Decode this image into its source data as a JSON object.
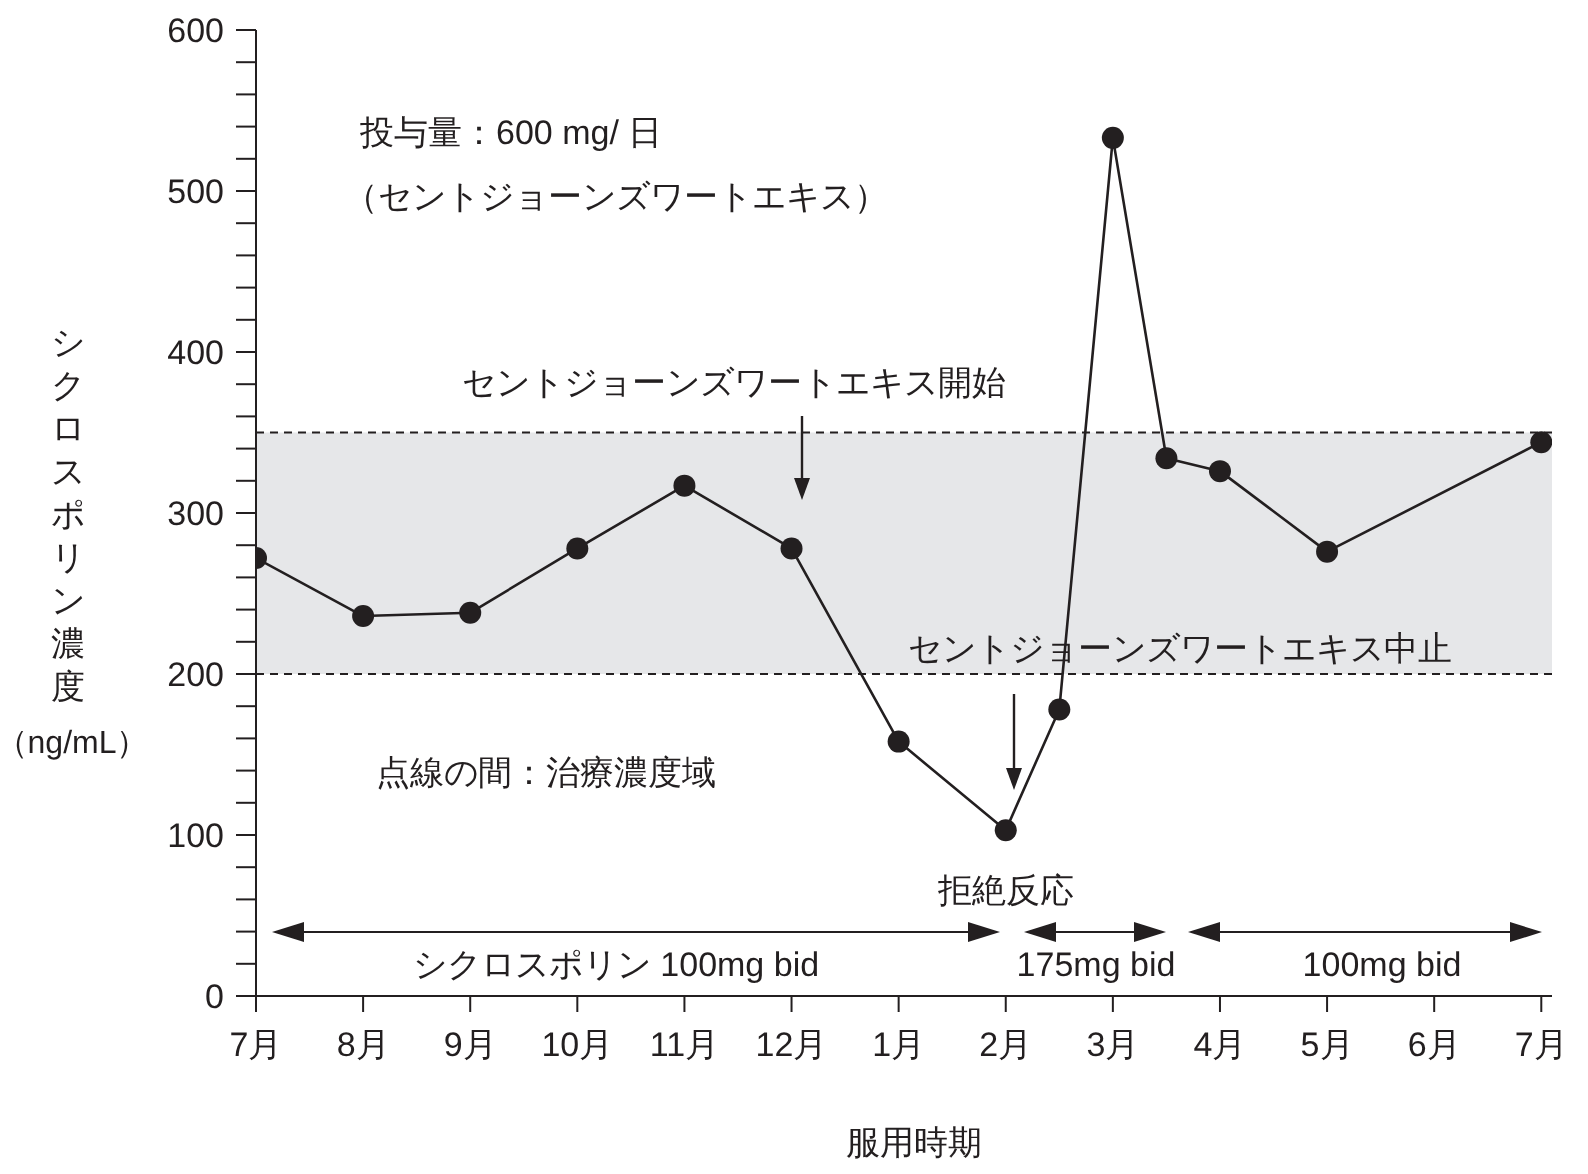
{
  "chart_data": {
    "type": "line",
    "xlabel": "服用時期",
    "ylabel": "シクロスポリン濃度（ng/mL）",
    "categories": [
      "7月",
      null,
      "8月",
      null,
      "9月",
      null,
      "10月",
      null,
      "11月",
      null,
      "12月",
      null,
      "1月",
      null,
      "2月",
      null,
      "3月",
      null,
      "4月",
      null,
      "5月",
      null,
      "6月",
      null,
      "7月"
    ],
    "series": [
      {
        "color": "#231f20",
        "values": [
          272,
          null,
          236,
          null,
          238,
          null,
          278,
          null,
          317,
          null,
          278,
          null,
          158,
          null,
          103,
          178,
          533,
          334,
          326,
          null,
          276,
          null,
          null,
          null,
          344
        ]
      }
    ],
    "ylim": [
      0,
      600
    ],
    "yticks": [
      0,
      {
        "value": 20,
        "label": null
      },
      {
        "value": 40,
        "label": null
      },
      {
        "value": 60,
        "label": null
      },
      {
        "value": 80,
        "label": null
      },
      100,
      {
        "value": 120,
        "label": null
      },
      {
        "value": 140,
        "label": null
      },
      {
        "value": 160,
        "label": null
      },
      {
        "value": 180,
        "label": null
      },
      200,
      {
        "value": 220,
        "label": null
      },
      {
        "value": 240,
        "label": null
      },
      {
        "value": 260,
        "label": null
      },
      {
        "value": 280,
        "label": null
      },
      300,
      {
        "value": 320,
        "label": null
      },
      {
        "value": 340,
        "label": null
      },
      {
        "value": 360,
        "label": null
      },
      {
        "value": 380,
        "label": null
      },
      400,
      {
        "value": 420,
        "label": null
      },
      {
        "value": 440,
        "label": null
      },
      {
        "value": 460,
        "label": null
      },
      {
        "value": 480,
        "label": null
      },
      500,
      {
        "value": 520,
        "label": null
      },
      {
        "value": 540,
        "label": null
      },
      {
        "value": 560,
        "label": null
      },
      {
        "value": 580,
        "label": null
      },
      600
    ],
    "bands": [
      {
        "axis": "y",
        "from": 200,
        "to": 350,
        "color": "#e6e7e9"
      }
    ],
    "ref_lines": [
      {
        "axis": "y",
        "value": 200,
        "color": "#231f20",
        "line_style": "dashed"
      },
      {
        "axis": "y",
        "value": 350,
        "color": "#231f20",
        "line_style": "dashed"
      }
    ],
    "marker": "circle",
    "line_style": "solid",
    "annotations": [
      "投与量：600 mg/ 日",
      "（セントジョーンズワートエキス）",
      "点線の間：治療濃度域",
      "シクロスポリン 100mg bid",
      "175mg bid",
      "100mg bid",
      "セントジョーンズワートエキス開始",
      "セントジョーンズワートエキス中止",
      {
        "text": "拒絶反応",
        "x": "2月",
        "y": 103
      }
    ]
  }
}
